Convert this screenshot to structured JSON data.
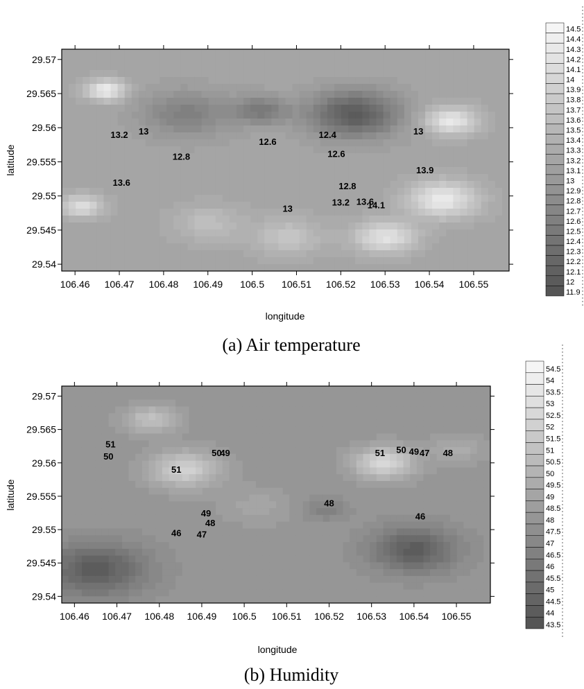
{
  "chart_data": [
    {
      "type": "contour",
      "caption": "(a) Air temperature",
      "xlabel": "longitude",
      "ylabel": "latitude",
      "xlim": [
        106.457,
        106.558
      ],
      "ylim": [
        29.539,
        29.5715
      ],
      "x_ticks": [
        "106.46",
        "106.47",
        "106.48",
        "106.49",
        "106.5",
        "106.51",
        "106.52",
        "106.53",
        "106.54",
        "106.55"
      ],
      "y_ticks": [
        "29.57",
        "29.565",
        "29.56",
        "29.555",
        "29.55",
        "29.545",
        "29.54"
      ],
      "colorbar_labels": [
        "14.5",
        "14.4",
        "14.3",
        "14.2",
        "14.1",
        "14",
        "13.9",
        "13.8",
        "13.7",
        "13.6",
        "13.5",
        "13.4",
        "13.3",
        "13.2",
        "13.1",
        "13",
        "12.9",
        "12.8",
        "12.7",
        "12.6",
        "12.5",
        "12.4",
        "12.3",
        "12.2",
        "12.1",
        "12",
        "11.9"
      ],
      "contour_labels": [
        {
          "text": "13",
          "x": 106.4755,
          "y": 29.559
        },
        {
          "text": "13.2",
          "x": 106.47,
          "y": 29.5585
        },
        {
          "text": "13.6",
          "x": 106.4705,
          "y": 29.5515
        },
        {
          "text": "12.8",
          "x": 106.484,
          "y": 29.5553
        },
        {
          "text": "12.6",
          "x": 106.5035,
          "y": 29.5575
        },
        {
          "text": "13",
          "x": 106.508,
          "y": 29.5477
        },
        {
          "text": "12.4",
          "x": 106.517,
          "y": 29.5585
        },
        {
          "text": "12.6",
          "x": 106.519,
          "y": 29.5557
        },
        {
          "text": "12.8",
          "x": 106.5215,
          "y": 29.551
        },
        {
          "text": "13.2",
          "x": 106.52,
          "y": 29.5486
        },
        {
          "text": "13.6",
          "x": 106.5255,
          "y": 29.5487
        },
        {
          "text": "14.1",
          "x": 106.528,
          "y": 29.5482
        },
        {
          "text": "13",
          "x": 106.5375,
          "y": 29.559
        },
        {
          "text": "13.9",
          "x": 106.539,
          "y": 29.5533
        }
      ],
      "field": [
        {
          "x": 106.467,
          "y": 29.5655,
          "v": 14.4,
          "r": 0.0045
        },
        {
          "x": 106.4615,
          "y": 29.5485,
          "v": 14.1,
          "r": 0.005
        },
        {
          "x": 106.485,
          "y": 29.562,
          "v": 12.6,
          "r": 0.01
        },
        {
          "x": 106.502,
          "y": 29.5625,
          "v": 12.5,
          "r": 0.006
        },
        {
          "x": 106.523,
          "y": 29.562,
          "v": 12.0,
          "r": 0.01
        },
        {
          "x": 106.545,
          "y": 29.561,
          "v": 14.3,
          "r": 0.006
        },
        {
          "x": 106.543,
          "y": 29.5495,
          "v": 14.3,
          "r": 0.008
        },
        {
          "x": 106.53,
          "y": 29.544,
          "v": 14.2,
          "r": 0.007
        },
        {
          "x": 106.508,
          "y": 29.544,
          "v": 13.7,
          "r": 0.008
        },
        {
          "x": 106.49,
          "y": 29.546,
          "v": 13.6,
          "r": 0.008
        }
      ],
      "field_base": 13.2
    },
    {
      "type": "contour",
      "caption": "(b) Humidity",
      "xlabel": "longitude",
      "ylabel": "latitude",
      "xlim": [
        106.457,
        106.558
      ],
      "ylim": [
        29.539,
        29.5715
      ],
      "x_ticks": [
        "106.46",
        "106.47",
        "106.48",
        "106.49",
        "106.5",
        "106.51",
        "106.52",
        "106.53",
        "106.54",
        "106.55"
      ],
      "y_ticks": [
        "29.57",
        "29.565",
        "29.56",
        "29.555",
        "29.55",
        "29.545",
        "29.54"
      ],
      "colorbar_labels": [
        "54.5",
        "54",
        "53.5",
        "53",
        "52.5",
        "52",
        "51.5",
        "51",
        "50.5",
        "50",
        "49.5",
        "49",
        "48.5",
        "48",
        "47.5",
        "47",
        "46.5",
        "46",
        "45.5",
        "45",
        "44.5",
        "44",
        "43.5"
      ],
      "contour_labels": [
        {
          "text": "51",
          "x": 106.4685,
          "y": 29.5623
        },
        {
          "text": "50",
          "x": 106.468,
          "y": 29.5605
        },
        {
          "text": "51",
          "x": 106.484,
          "y": 29.5585
        },
        {
          "text": "50",
          "x": 106.4935,
          "y": 29.561
        },
        {
          "text": "49",
          "x": 106.4955,
          "y": 29.561
        },
        {
          "text": "49",
          "x": 106.491,
          "y": 29.552
        },
        {
          "text": "48",
          "x": 106.492,
          "y": 29.5505
        },
        {
          "text": "47",
          "x": 106.49,
          "y": 29.5488
        },
        {
          "text": "46",
          "x": 106.484,
          "y": 29.549
        },
        {
          "text": "48",
          "x": 106.52,
          "y": 29.5535
        },
        {
          "text": "51",
          "x": 106.532,
          "y": 29.561
        },
        {
          "text": "50",
          "x": 106.537,
          "y": 29.5615
        },
        {
          "text": "49",
          "x": 106.54,
          "y": 29.5612
        },
        {
          "text": "47",
          "x": 106.5425,
          "y": 29.561
        },
        {
          "text": "48",
          "x": 106.548,
          "y": 29.561
        },
        {
          "text": "46",
          "x": 106.5415,
          "y": 29.5515
        }
      ],
      "field": [
        {
          "x": 106.486,
          "y": 29.559,
          "v": 52.0,
          "r": 0.008
        },
        {
          "x": 106.478,
          "y": 29.5665,
          "v": 51.0,
          "r": 0.006
        },
        {
          "x": 106.533,
          "y": 29.56,
          "v": 52.5,
          "r": 0.007
        },
        {
          "x": 106.465,
          "y": 29.544,
          "v": 44.0,
          "r": 0.012
        },
        {
          "x": 106.54,
          "y": 29.547,
          "v": 44.0,
          "r": 0.01
        },
        {
          "x": 106.519,
          "y": 29.553,
          "v": 46.5,
          "r": 0.005
        },
        {
          "x": 106.503,
          "y": 29.5535,
          "v": 49.0,
          "r": 0.008
        },
        {
          "x": 106.55,
          "y": 29.562,
          "v": 49.5,
          "r": 0.006
        }
      ],
      "field_base": 48.0
    }
  ]
}
